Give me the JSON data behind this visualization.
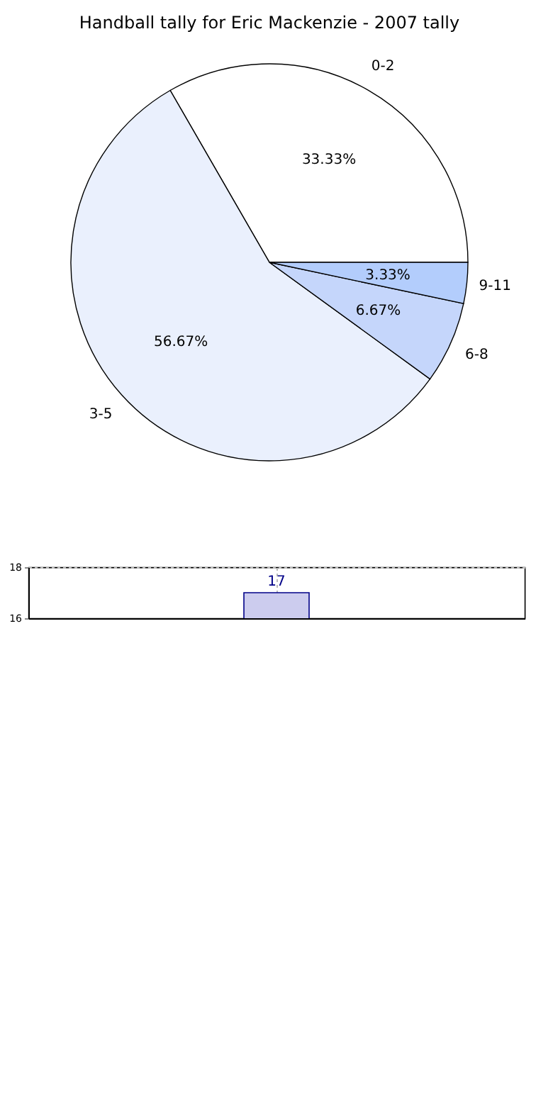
{
  "chart_data": [
    {
      "type": "pie",
      "title": "Handball tally for Eric Mackenzie - 2007 tally",
      "categories": [
        "0-2",
        "3-5",
        "6-8",
        "9-11"
      ],
      "values": [
        33.33,
        56.67,
        6.67,
        3.33
      ],
      "value_labels": [
        "33.33%",
        "56.67%",
        "6.67%",
        "3.33%"
      ],
      "colors": [
        "#ffffff",
        "#eaf0fd",
        "#c5d6fb",
        "#b3cdfc"
      ]
    },
    {
      "type": "bar",
      "categories": [
        null,
        null,
        null,
        null
      ],
      "values": [
        null,
        17,
        null,
        null
      ],
      "color": "#ccccee",
      "ylim": [
        16,
        18
      ],
      "yticks": [
        16,
        18
      ],
      "data_labels": true,
      "grid": true,
      "tick_labels": "y"
    }
  ]
}
